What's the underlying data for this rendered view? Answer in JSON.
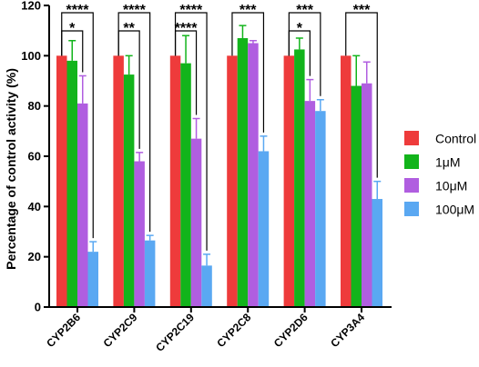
{
  "chart_data": {
    "type": "bar",
    "categories": [
      "CYP2B6",
      "CYP2C9",
      "CYP2C19",
      "CYP2C8",
      "CYP2D6",
      "CYP3A4"
    ],
    "ylabel": "Percentage of control activity (%)",
    "xlabel": "",
    "ylim": [
      0,
      120
    ],
    "yticks": [
      0,
      20,
      40,
      60,
      80,
      100,
      120
    ],
    "legend_position": "right",
    "series": [
      {
        "name": "Control",
        "color": "#ee3b3b",
        "values": [
          100,
          100,
          100,
          100,
          100,
          100
        ],
        "errors": [
          0,
          0,
          0,
          0,
          0,
          0
        ]
      },
      {
        "name": "1μM",
        "color": "#12b41b",
        "values": [
          98,
          92.5,
          97,
          107,
          102.5,
          88
        ],
        "errors": [
          8,
          7.5,
          11,
          5,
          4.5,
          12
        ]
      },
      {
        "name": "10μM",
        "color": "#b05ee0",
        "values": [
          81,
          58,
          67,
          105,
          82,
          89
        ],
        "errors": [
          11,
          3.5,
          8,
          1,
          8.5,
          8.5
        ]
      },
      {
        "name": "100μM",
        "color": "#5aa8f2",
        "values": [
          22,
          26.5,
          16.5,
          62,
          78,
          43
        ],
        "errors": [
          4,
          2,
          4.5,
          6,
          4.5,
          7
        ]
      }
    ],
    "significance": [
      {
        "category": 0,
        "to_series": 3,
        "label": "****"
      },
      {
        "category": 0,
        "to_series": 2,
        "label": "*"
      },
      {
        "category": 1,
        "to_series": 3,
        "label": "****"
      },
      {
        "category": 1,
        "to_series": 2,
        "label": "**"
      },
      {
        "category": 2,
        "to_series": 3,
        "label": "****"
      },
      {
        "category": 2,
        "to_series": 2,
        "label": "****"
      },
      {
        "category": 3,
        "to_series": 3,
        "label": "***"
      },
      {
        "category": 4,
        "to_series": 3,
        "label": "***"
      },
      {
        "category": 4,
        "to_series": 2,
        "label": "*"
      },
      {
        "category": 5,
        "to_series": 3,
        "label": "***"
      }
    ]
  }
}
